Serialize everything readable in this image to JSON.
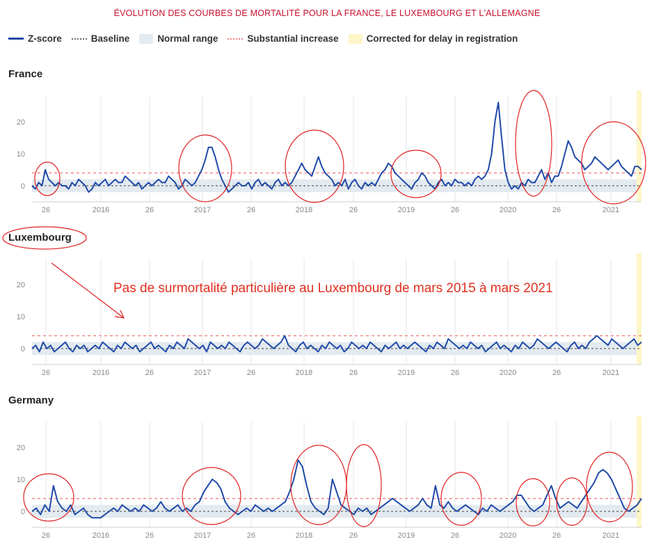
{
  "title": "ÉVOLUTION DES COURBES DE MORTALITÉ POUR LA FRANCE, LE LUXEMBOURG ET L'ALLEMAGNE",
  "legend": [
    {
      "label": "Z-score",
      "swatch": "line",
      "color": "#1f4aa8"
    },
    {
      "label": "Baseline",
      "swatch": "dot",
      "color": "#666666"
    },
    {
      "label": "Normal range",
      "swatch": "box",
      "color": "#e3eaf0"
    },
    {
      "label": "Substantial increase",
      "swatch": "pink",
      "color": "#f08080"
    },
    {
      "label": "Corrected for delay in registration",
      "swatch": "box",
      "color": "#fdf6c8"
    }
  ],
  "annotation": "Pas de surmortalité particulière au Luxembourg de mars 2015 à mars 2021",
  "chart_data": [
    {
      "type": "line",
      "title": "France",
      "x_tick_labels": [
        "26",
        "2016",
        "26",
        "2017",
        "26",
        "2018",
        "26",
        "2019",
        "26",
        "2020",
        "26",
        "2021"
      ],
      "y_ticks": [
        0,
        10,
        20
      ],
      "ylim": [
        -5,
        28
      ],
      "normal_range": [
        -2,
        2
      ],
      "baseline": 0,
      "substantial_increase": 4,
      "series": [
        {
          "values": [
            0,
            -1,
            1,
            0,
            5,
            2,
            1,
            0,
            1,
            0,
            0,
            -1,
            1,
            0,
            2,
            1,
            0,
            -2,
            -1,
            1,
            0,
            1,
            2,
            0,
            1,
            2,
            1,
            1,
            3,
            2,
            1,
            0,
            1,
            -1,
            0,
            1,
            0,
            1,
            2,
            1,
            1,
            3,
            2,
            1,
            -1,
            0,
            2,
            1,
            0,
            1,
            3,
            5,
            8,
            12,
            12,
            9,
            5,
            2,
            0,
            -2,
            -1,
            0,
            1,
            0,
            0,
            1,
            -1,
            1,
            2,
            0,
            1,
            0,
            -1,
            1,
            2,
            0,
            1,
            0,
            1,
            3,
            5,
            7,
            5,
            4,
            3,
            6,
            9,
            6,
            4,
            3,
            2,
            0,
            1,
            0,
            2,
            -1,
            1,
            2,
            0,
            -1,
            1,
            0,
            1,
            0,
            2,
            4,
            5,
            7,
            6,
            4,
            3,
            2,
            1,
            0,
            -1,
            1,
            2,
            4,
            3,
            1,
            0,
            -1,
            1,
            2,
            0,
            1,
            0,
            2,
            1,
            1,
            0,
            1,
            0,
            2,
            3,
            2,
            3,
            5,
            10,
            20,
            26,
            15,
            5,
            1,
            -1,
            0,
            -1,
            1,
            0,
            2,
            1,
            1,
            3,
            5,
            2,
            4,
            1,
            3,
            3,
            6,
            10,
            14,
            12,
            9,
            8,
            7,
            5,
            6,
            7,
            9,
            8,
            7,
            6,
            5,
            6,
            7,
            8,
            6,
            5,
            4,
            3,
            6,
            6,
            5
          ]
        }
      ]
    },
    {
      "type": "line",
      "title": "Luxembourg",
      "x_tick_labels": [
        "26",
        "2016",
        "26",
        "2017",
        "26",
        "2018",
        "26",
        "2019",
        "26",
        "2020",
        "26",
        "2021"
      ],
      "y_ticks": [
        0,
        10,
        20
      ],
      "ylim": [
        -5,
        28
      ],
      "normal_range": [
        -2,
        2
      ],
      "baseline": 0,
      "substantial_increase": 4,
      "series": [
        {
          "values": [
            0,
            1,
            -1,
            2,
            0,
            1,
            -1,
            0,
            1,
            2,
            0,
            -1,
            1,
            0,
            1,
            -1,
            0,
            1,
            0,
            2,
            1,
            0,
            -1,
            1,
            0,
            2,
            1,
            0,
            1,
            -1,
            0,
            1,
            2,
            0,
            1,
            0,
            -1,
            1,
            0,
            2,
            1,
            0,
            3,
            2,
            1,
            0,
            1,
            -1,
            2,
            1,
            0,
            1,
            0,
            2,
            1,
            0,
            -1,
            1,
            2,
            1,
            0,
            1,
            3,
            2,
            1,
            0,
            1,
            2,
            4,
            1,
            0,
            -1,
            1,
            2,
            0,
            1,
            0,
            -1,
            1,
            0,
            2,
            1,
            0,
            1,
            -1,
            0,
            2,
            1,
            0,
            1,
            0,
            2,
            1,
            0,
            -1,
            1,
            0,
            1,
            2,
            0,
            1,
            0,
            1,
            2,
            1,
            0,
            -1,
            1,
            0,
            2,
            1,
            0,
            3,
            2,
            1,
            0,
            1,
            0,
            2,
            1,
            0,
            1,
            -1,
            0,
            1,
            2,
            0,
            1,
            0,
            -1,
            1,
            0,
            2,
            1,
            0,
            1,
            3,
            2,
            1,
            0,
            1,
            2,
            1,
            0,
            -1,
            1,
            2,
            0,
            1,
            0,
            2,
            3,
            4,
            3,
            2,
            1,
            3,
            2,
            1,
            0,
            1,
            2,
            3,
            1,
            2
          ]
        }
      ]
    },
    {
      "type": "line",
      "title": "Germany",
      "x_tick_labels": [
        "26",
        "2016",
        "26",
        "2017",
        "26",
        "2018",
        "26",
        "2019",
        "26",
        "2020",
        "26",
        "2021"
      ],
      "y_ticks": [
        0,
        10,
        20
      ],
      "ylim": [
        -5,
        28
      ],
      "normal_range": [
        -2,
        2
      ],
      "baseline": 0,
      "substantial_increase": 4,
      "series": [
        {
          "values": [
            0,
            1,
            -1,
            2,
            0,
            8,
            3,
            1,
            0,
            2,
            -1,
            0,
            1,
            -1,
            -2,
            -2,
            -2,
            -1,
            0,
            1,
            0,
            2,
            1,
            0,
            1,
            0,
            2,
            1,
            0,
            1,
            3,
            1,
            0,
            1,
            2,
            0,
            1,
            0,
            2,
            3,
            6,
            8,
            10,
            9,
            7,
            3,
            1,
            0,
            -1,
            0,
            1,
            0,
            2,
            1,
            0,
            1,
            0,
            1,
            2,
            3,
            6,
            10,
            16,
            14,
            8,
            3,
            1,
            0,
            -1,
            1,
            10,
            6,
            2,
            1,
            0,
            -1,
            1,
            0,
            1,
            -1,
            0,
            1,
            2,
            3,
            4,
            3,
            2,
            1,
            0,
            1,
            2,
            4,
            2,
            1,
            8,
            2,
            1,
            3,
            1,
            0,
            1,
            2,
            1,
            0,
            -1,
            1,
            0,
            2,
            1,
            0,
            1,
            2,
            3,
            5,
            5,
            3,
            1,
            0,
            1,
            2,
            5,
            8,
            4,
            1,
            2,
            3,
            2,
            1,
            3,
            5,
            7,
            9,
            12,
            13,
            12,
            10,
            7,
            4,
            1,
            0,
            1,
            2,
            4
          ]
        }
      ]
    }
  ]
}
